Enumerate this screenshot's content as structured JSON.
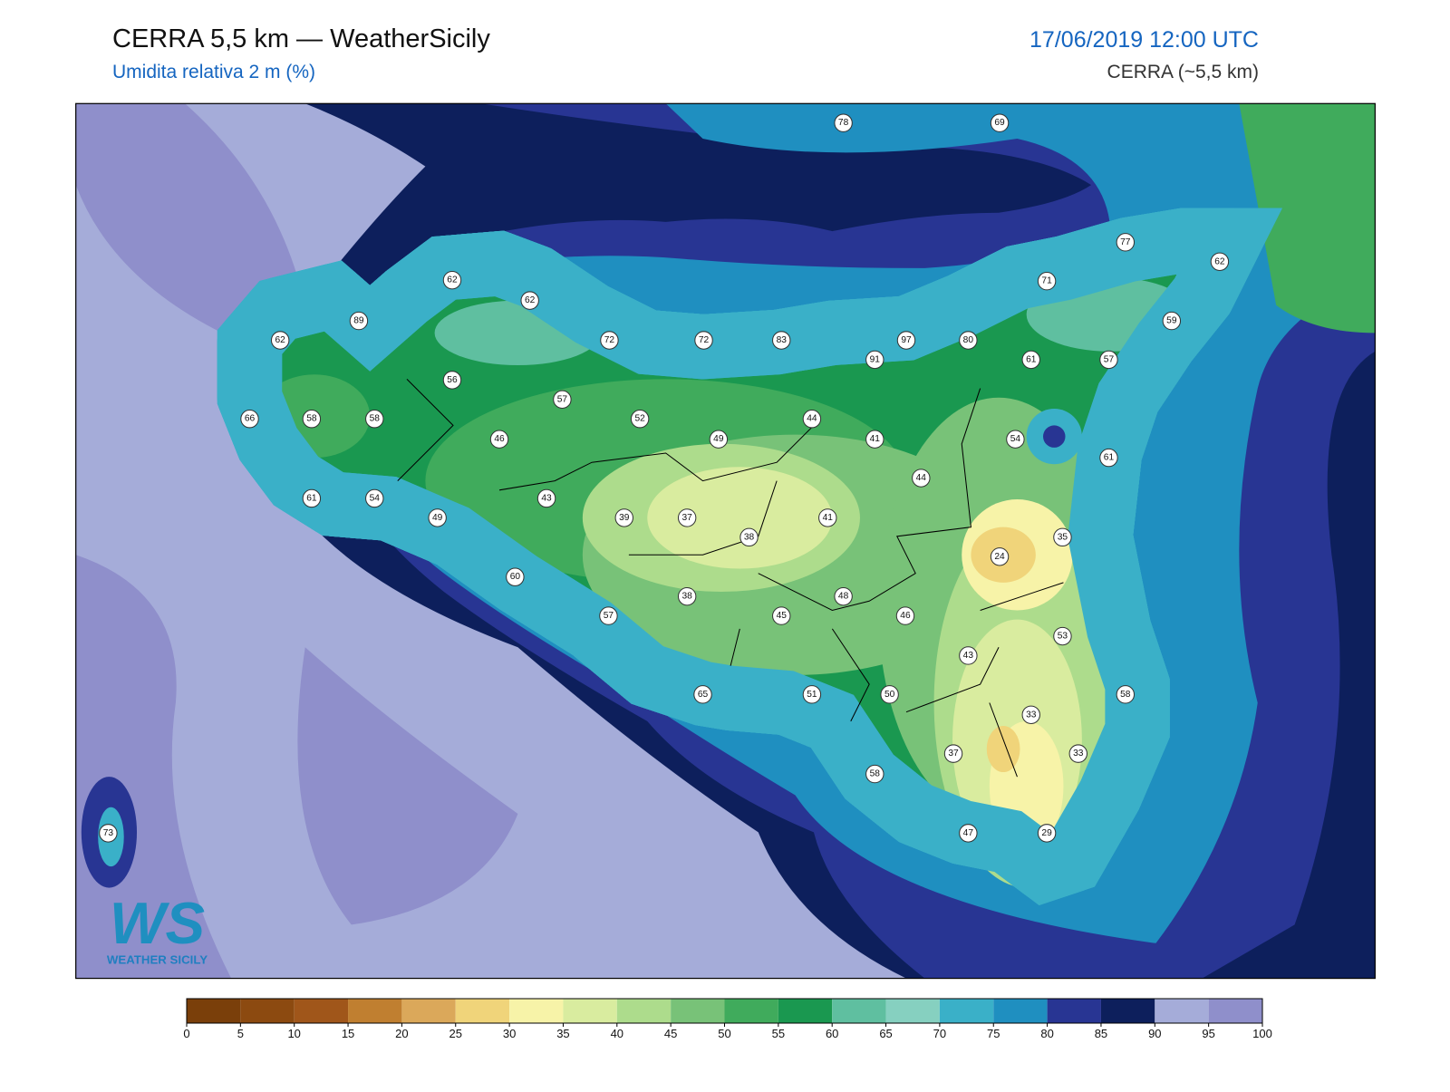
{
  "header": {
    "title": "CERRA 5,5 km — WeatherSicily",
    "subtitle": "Umidita relativa 2 m (%)",
    "datetime": "17/06/2019 12:00 UTC",
    "model": "CERRA (~5,5 km)"
  },
  "stations": [
    78,
    69,
    77,
    62,
    62,
    62,
    89,
    71,
    59,
    62,
    72,
    72,
    83,
    97,
    91,
    80,
    61,
    57,
    56,
    57,
    66,
    58,
    58,
    52,
    49,
    44,
    41,
    54,
    46,
    61,
    44,
    61,
    54,
    43,
    49,
    39,
    37,
    41,
    38,
    35,
    24,
    60,
    38,
    48,
    45,
    46,
    57,
    53,
    43,
    65,
    51,
    50,
    58,
    33,
    37,
    33,
    58,
    47,
    29,
    73
  ],
  "colorbar": {
    "ticks": [
      0,
      5,
      10,
      15,
      20,
      25,
      30,
      35,
      40,
      45,
      50,
      55,
      60,
      65,
      70,
      75,
      80,
      85,
      90,
      95,
      100
    ],
    "colors": [
      "#7a3f0a",
      "#8c4a10",
      "#a0561a",
      "#c07f30",
      "#dba85a",
      "#f0d47a",
      "#f7f3a8",
      "#d9ec9f",
      "#addc8c",
      "#78c278",
      "#40ab5c",
      "#1a9850",
      "#5fbfa0",
      "#86d0c0",
      "#3ab0c8",
      "#1f8fc0",
      "#283593",
      "#0d1f5c",
      "#a5acd9",
      "#8f8fcb"
    ]
  },
  "logo": {
    "mark": "WS",
    "text": "WEATHER SICILY"
  }
}
